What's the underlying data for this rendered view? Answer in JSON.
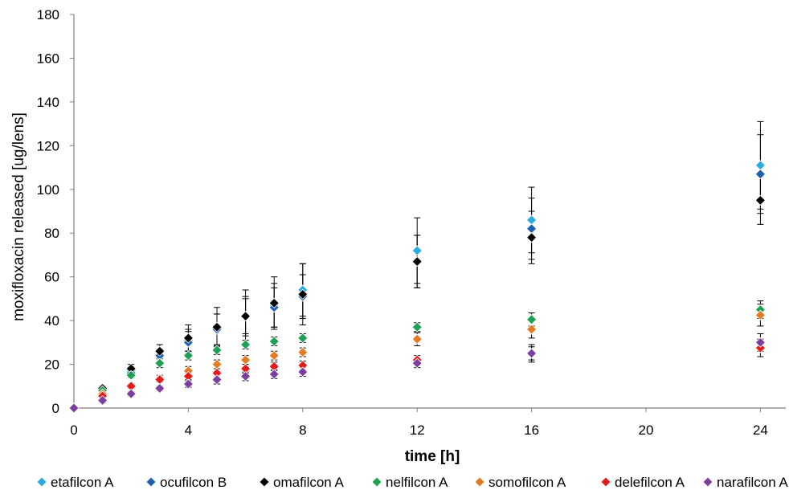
{
  "chart_data": {
    "type": "scatter",
    "xlabel": "time [h]",
    "ylabel": "moxifloxacin released [ug/lens]",
    "xlim": [
      0,
      25
    ],
    "ylim": [
      0,
      180
    ],
    "xticks": [
      0,
      4,
      8,
      12,
      16,
      20,
      24
    ],
    "yticks": [
      0,
      20,
      40,
      60,
      80,
      100,
      120,
      140,
      160,
      180
    ],
    "grid": false,
    "legend_position": "bottom",
    "x": [
      0,
      1,
      2,
      3,
      4,
      5,
      6,
      7,
      8,
      12,
      16,
      24
    ],
    "series": [
      {
        "name": "etafilcon A",
        "color": "#29ABE2",
        "values": [
          0,
          9,
          17,
          24,
          31,
          36,
          42,
          47,
          54,
          72,
          86,
          111
        ],
        "error": [
          0,
          1,
          2,
          3,
          5,
          7,
          9,
          10,
          12,
          15,
          15,
          20
        ]
      },
      {
        "name": "ocufilcon B",
        "color": "#1F5FAF",
        "values": [
          0,
          8.5,
          16,
          24,
          30,
          36,
          42,
          46,
          51,
          67,
          82,
          107
        ],
        "error": [
          0,
          1,
          2,
          3,
          5,
          7,
          8,
          9,
          10,
          12,
          14,
          18
        ]
      },
      {
        "name": "omafilcon A",
        "color": "#000000",
        "values": [
          0,
          9,
          18,
          26,
          32,
          37,
          42,
          48,
          52,
          67,
          78,
          95
        ],
        "error": [
          0,
          1,
          2,
          3,
          6,
          9,
          12,
          12,
          14,
          12,
          12,
          11
        ]
      },
      {
        "name": "nelfilcon A",
        "color": "#1FA055",
        "values": [
          0,
          8,
          15,
          20.5,
          24,
          26.5,
          29,
          30.5,
          32,
          37,
          40.5,
          45
        ],
        "error": [
          0,
          1,
          1,
          2,
          2,
          2,
          2,
          2,
          2,
          2,
          3,
          4
        ]
      },
      {
        "name": "somofilcon A",
        "color": "#E47A22",
        "values": [
          0,
          6.5,
          10,
          13.5,
          17,
          20,
          22,
          24,
          25.5,
          31.5,
          36,
          42.5
        ],
        "error": [
          0,
          1,
          1,
          1.5,
          2,
          2,
          2,
          2,
          2,
          3,
          4,
          5
        ]
      },
      {
        "name": "delefilcon A",
        "color": "#E31B1B",
        "values": [
          0,
          5.5,
          10,
          13,
          14.5,
          16,
          18,
          19,
          19.5,
          22,
          25,
          27.5
        ],
        "error": [
          0,
          1,
          1,
          1,
          1.5,
          2,
          2,
          2,
          2,
          2,
          3,
          4
        ]
      },
      {
        "name": "narafilcon A",
        "color": "#7B3FA0",
        "values": [
          0,
          3.5,
          6.5,
          9,
          11,
          13,
          14.5,
          15.5,
          16.5,
          20.5,
          25,
          30
        ],
        "error": [
          0,
          1,
          1,
          1,
          1.5,
          2,
          2,
          2,
          2,
          2,
          4,
          4
        ]
      }
    ]
  }
}
